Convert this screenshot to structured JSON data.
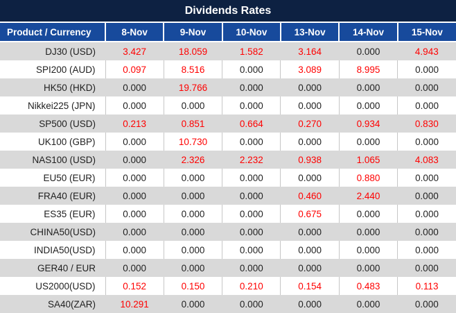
{
  "title": "Dividends Rates",
  "colors": {
    "title-bg": "#0d2142",
    "header-bg": "#174a9c",
    "stripe-bg": "#d9d9d9",
    "red": "#ff0000",
    "text": "#1f1f1f"
  },
  "chart_data": {
    "type": "table",
    "title": "Dividends Rates",
    "value_style_rule": "non-zero values rendered red, zero values rendered black",
    "columns": [
      "Product / Currency",
      "8-Nov",
      "9-Nov",
      "10-Nov",
      "13-Nov",
      "14-Nov",
      "15-Nov"
    ],
    "rows": [
      {
        "product": "DJ30 (USD)",
        "values": [
          "3.427",
          "18.059",
          "1.582",
          "3.164",
          "0.000",
          "4.943"
        ]
      },
      {
        "product": "SPI200 (AUD)",
        "values": [
          "0.097",
          "8.516",
          "0.000",
          "3.089",
          "8.995",
          "0.000"
        ]
      },
      {
        "product": "HK50 (HKD)",
        "values": [
          "0.000",
          "19.766",
          "0.000",
          "0.000",
          "0.000",
          "0.000"
        ]
      },
      {
        "product": "Nikkei225 (JPN)",
        "values": [
          "0.000",
          "0.000",
          "0.000",
          "0.000",
          "0.000",
          "0.000"
        ]
      },
      {
        "product": "SP500 (USD)",
        "values": [
          "0.213",
          "0.851",
          "0.664",
          "0.270",
          "0.934",
          "0.830"
        ]
      },
      {
        "product": "UK100 (GBP)",
        "values": [
          "0.000",
          "10.730",
          "0.000",
          "0.000",
          "0.000",
          "0.000"
        ]
      },
      {
        "product": "NAS100 (USD)",
        "values": [
          "0.000",
          "2.326",
          "2.232",
          "0.938",
          "1.065",
          "4.083"
        ]
      },
      {
        "product": "EU50 (EUR)",
        "values": [
          "0.000",
          "0.000",
          "0.000",
          "0.000",
          "0.880",
          "0.000"
        ]
      },
      {
        "product": "FRA40 (EUR)",
        "values": [
          "0.000",
          "0.000",
          "0.000",
          "0.460",
          "2.440",
          "0.000"
        ]
      },
      {
        "product": "ES35 (EUR)",
        "values": [
          "0.000",
          "0.000",
          "0.000",
          "0.675",
          "0.000",
          "0.000"
        ]
      },
      {
        "product": "CHINA50(USD)",
        "values": [
          "0.000",
          "0.000",
          "0.000",
          "0.000",
          "0.000",
          "0.000"
        ]
      },
      {
        "product": "INDIA50(USD)",
        "values": [
          "0.000",
          "0.000",
          "0.000",
          "0.000",
          "0.000",
          "0.000"
        ]
      },
      {
        "product": "GER40 / EUR",
        "values": [
          "0.000",
          "0.000",
          "0.000",
          "0.000",
          "0.000",
          "0.000"
        ]
      },
      {
        "product": "US2000(USD)",
        "values": [
          "0.152",
          "0.150",
          "0.210",
          "0.154",
          "0.483",
          "0.113"
        ]
      },
      {
        "product": "SA40(ZAR)",
        "values": [
          "10.291",
          "0.000",
          "0.000",
          "0.000",
          "0.000",
          "0.000"
        ]
      }
    ]
  }
}
